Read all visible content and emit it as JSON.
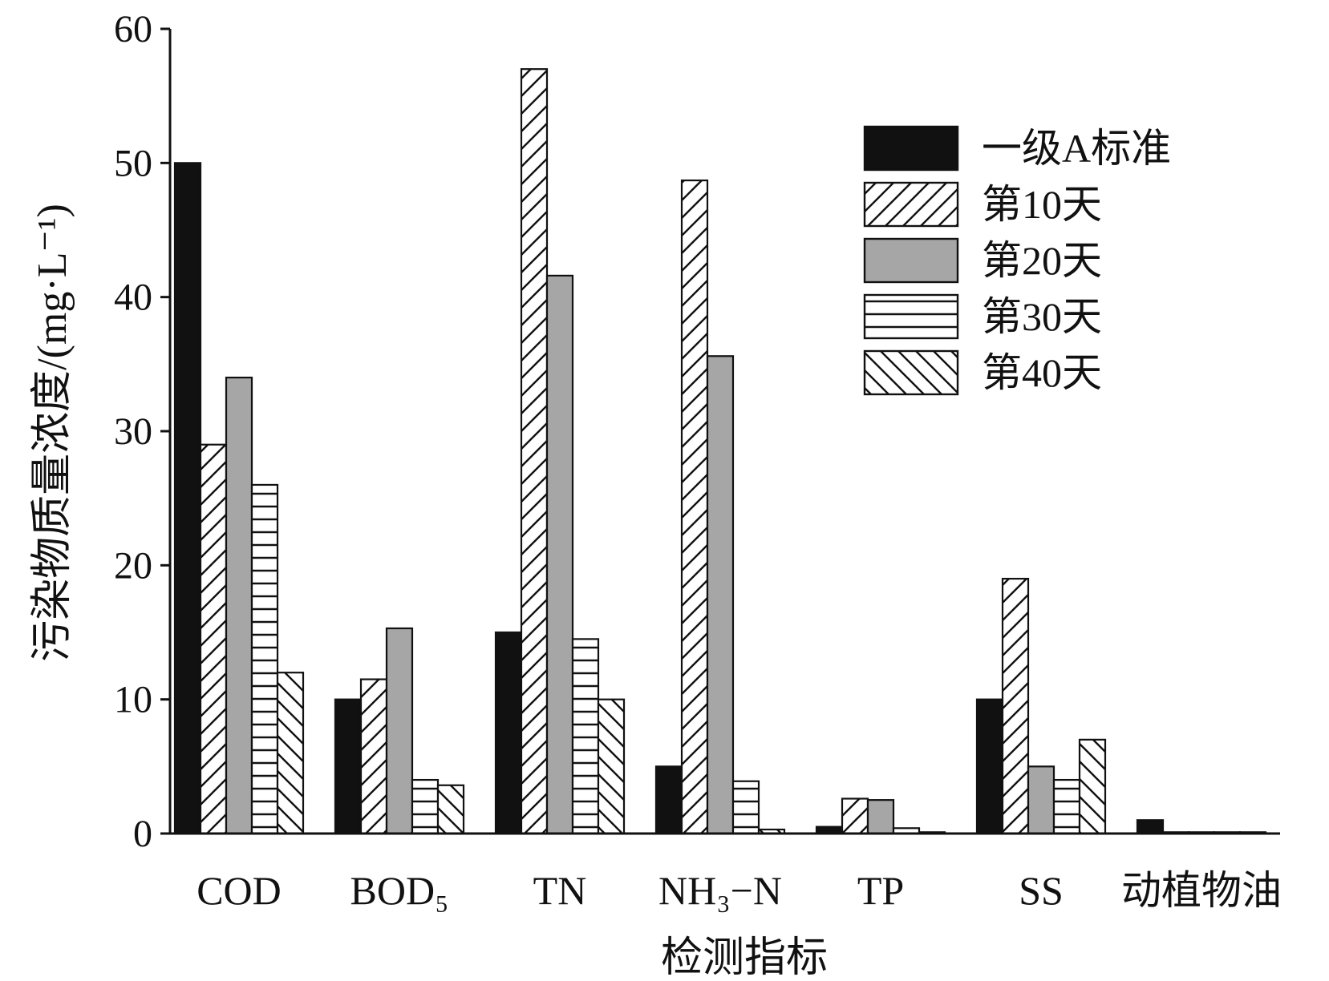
{
  "chart_data": {
    "type": "bar",
    "title": "",
    "xlabel": "检测指标",
    "ylabel": "污染物质量浓度/(mg·L⁻¹)",
    "ylim": [
      0,
      60
    ],
    "yticks": [
      0,
      10,
      20,
      30,
      40,
      50,
      60
    ],
    "categories": [
      "COD",
      "BOD₅",
      "TN",
      "NH₃−N",
      "TP",
      "SS",
      "动植物油"
    ],
    "legend_position": "top-right",
    "grid": false,
    "series": [
      {
        "name": "一级A标准",
        "pattern": "solid-black",
        "values": [
          50,
          10,
          15,
          5,
          0.5,
          10,
          1
        ]
      },
      {
        "name": "第10天",
        "pattern": "diagonal-up",
        "values": [
          29,
          11.5,
          57,
          48.7,
          2.6,
          19,
          0.1
        ]
      },
      {
        "name": "第20天",
        "pattern": "solid-gray",
        "values": [
          34,
          15.3,
          41.6,
          35.6,
          2.5,
          5,
          0.1
        ]
      },
      {
        "name": "第30天",
        "pattern": "horizontal",
        "values": [
          26,
          4,
          14.5,
          3.9,
          0.4,
          4,
          0.1
        ]
      },
      {
        "name": "第40天",
        "pattern": "diagonal-down",
        "values": [
          12,
          3.6,
          10,
          0.3,
          0.1,
          7,
          0.1
        ]
      }
    ]
  }
}
